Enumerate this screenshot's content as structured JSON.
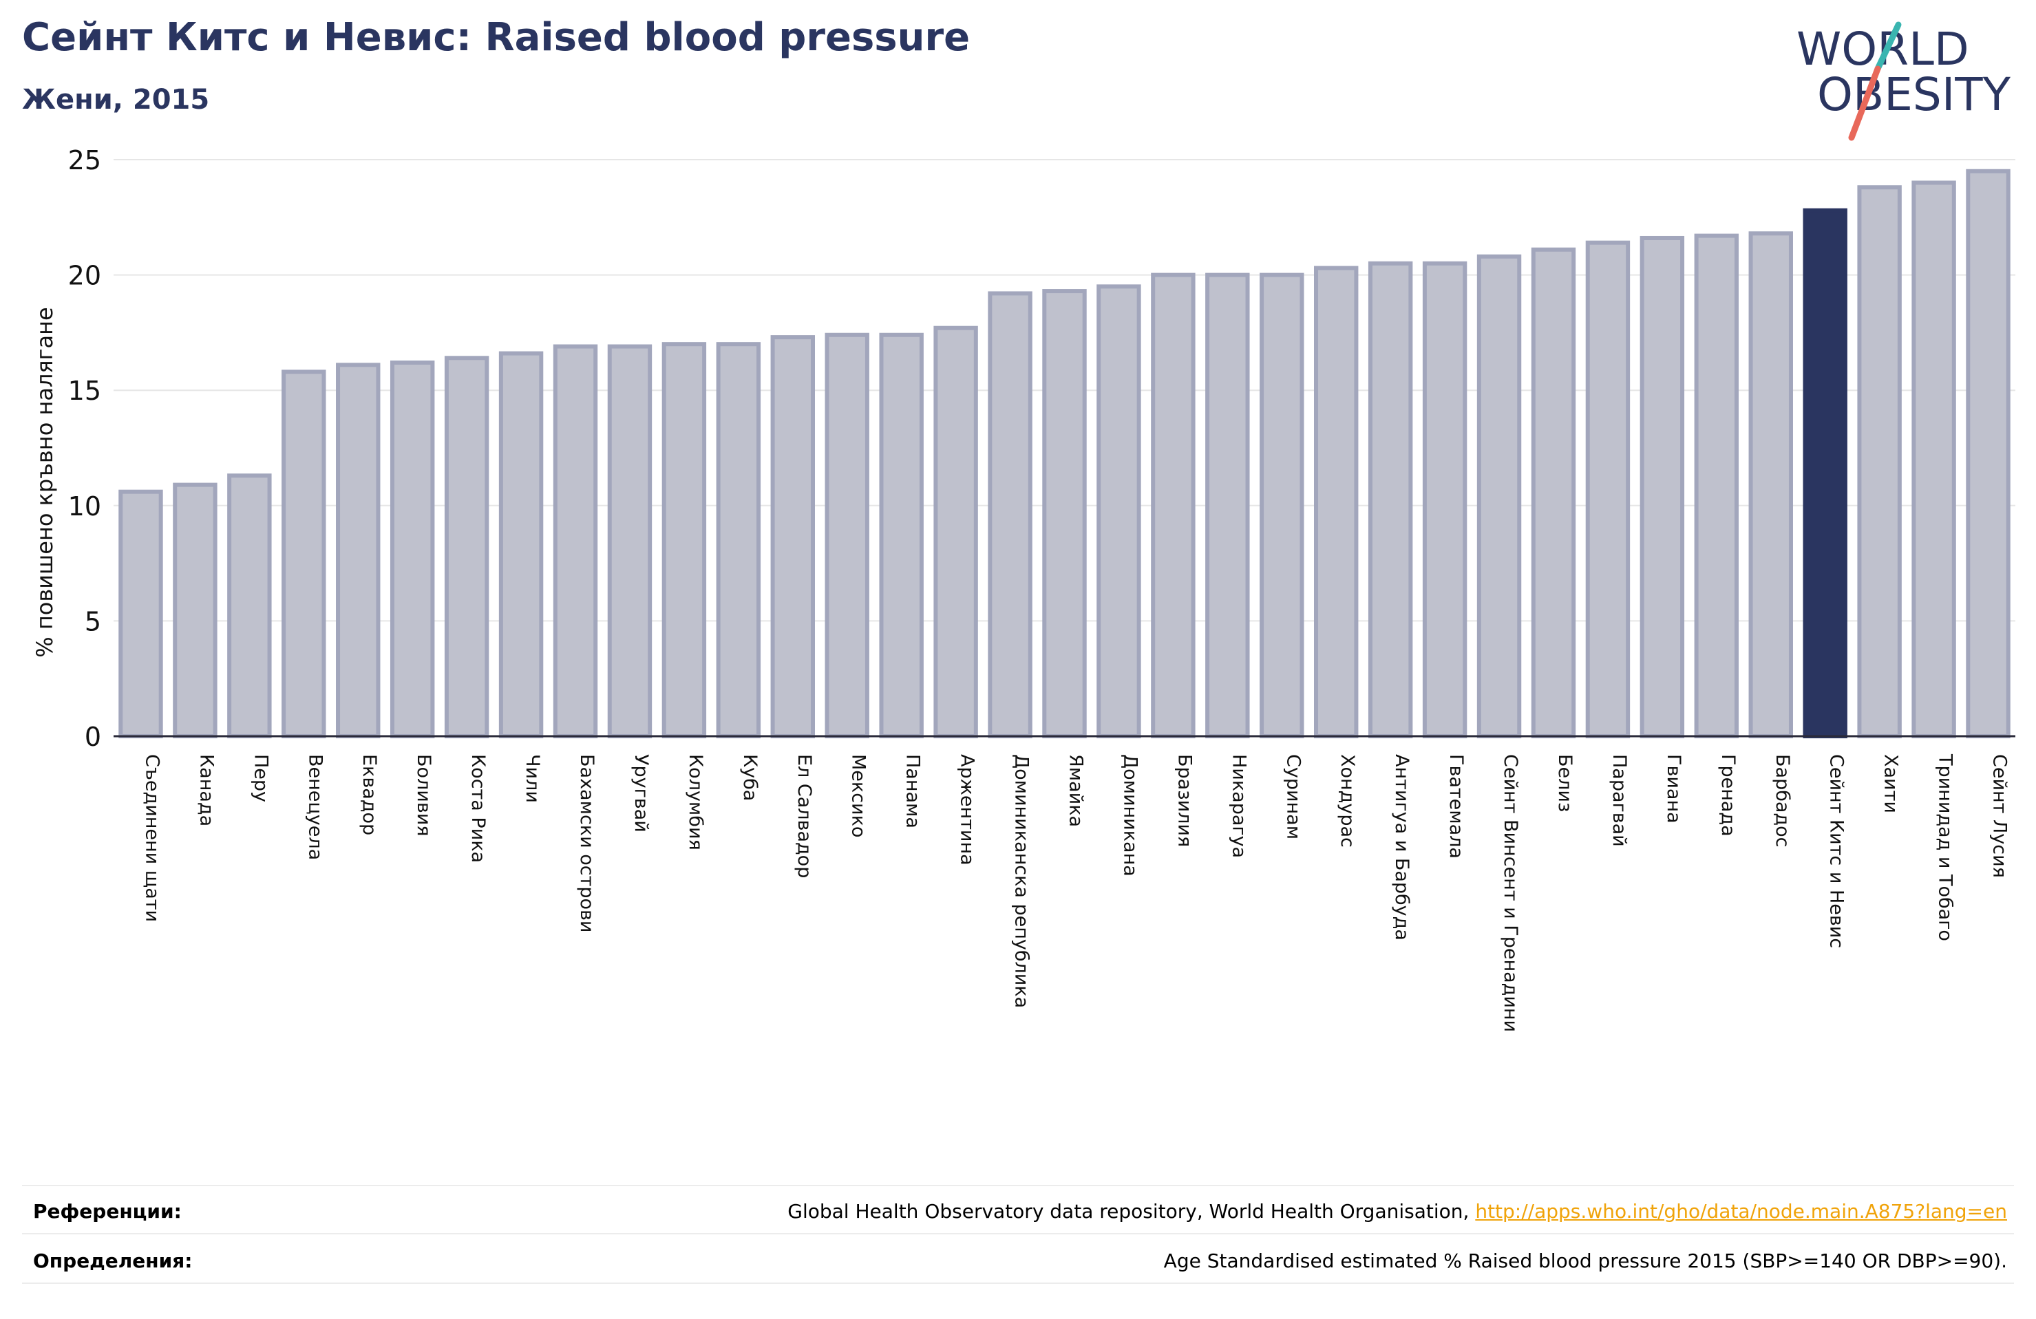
{
  "header": {
    "title": "Сейнт Китс и Невис: Raised blood pressure",
    "subtitle": "Жени, 2015"
  },
  "logo": {
    "line1": "WORLD",
    "line2": "OBESITY",
    "text_color": "#2a3560",
    "slash_teal": "#3ab5b0",
    "slash_red": "#e8685a"
  },
  "chart_data": {
    "type": "bar",
    "title": "Сейнт Китс и Невис: Raised blood pressure",
    "subtitle": "Жени, 2015",
    "xlabel": "",
    "ylabel": "% повишено кръвно налягане",
    "ylim": [
      0,
      25
    ],
    "yticks": [
      0,
      5,
      10,
      15,
      20,
      25
    ],
    "grid": true,
    "colors": {
      "default": "#bfc1cd",
      "default_border": "#a2a6bc",
      "highlight": "#2a3560"
    },
    "highlight": "Сейнт Китс и Невис",
    "categories": [
      "Съединени щати",
      "Канада",
      "Перу",
      "Венецуела",
      "Еквадор",
      "Боливия",
      "Коста Рика",
      "Чили",
      "Бахамски острови",
      "Уругвай",
      "Колумбия",
      "Куба",
      "Ел Салвадор",
      "Мексико",
      "Панама",
      "Аржентина",
      "Доминиканска република",
      "Ямайка",
      "Доминикана",
      "Бразилия",
      "Никарагуа",
      "Суринам",
      "Хондурас",
      "Антигуа и Барбуда",
      "Гватемала",
      "Сейнт Винсент и Гренадини",
      "Белиз",
      "Парагвай",
      "Гвиана",
      "Гренада",
      "Барбадос",
      "Сейнт Китс и Невис",
      "Хаити",
      "Тринидад и Тобаго",
      "Сейнт Лусия"
    ],
    "values": [
      10.6,
      10.9,
      11.3,
      15.8,
      16.1,
      16.2,
      16.4,
      16.6,
      16.9,
      16.9,
      17.0,
      17.0,
      17.3,
      17.4,
      17.4,
      17.7,
      19.2,
      19.3,
      19.5,
      20.0,
      20.0,
      20.0,
      20.3,
      20.5,
      20.5,
      20.8,
      21.1,
      21.4,
      21.6,
      21.7,
      21.8,
      22.8,
      23.8,
      24.0,
      24.5
    ]
  },
  "footer": {
    "references_label": "Референции:",
    "references_text": "Global Health Observatory data repository, World Health Organisation, ",
    "references_link": "http://apps.who.int/gho/data/node.main.A875?lang=en",
    "definitions_label": "Определения:",
    "definitions_text": "Age Standardised estimated % Raised blood pressure 2015 (SBP>=140 OR DBP>=90)."
  }
}
